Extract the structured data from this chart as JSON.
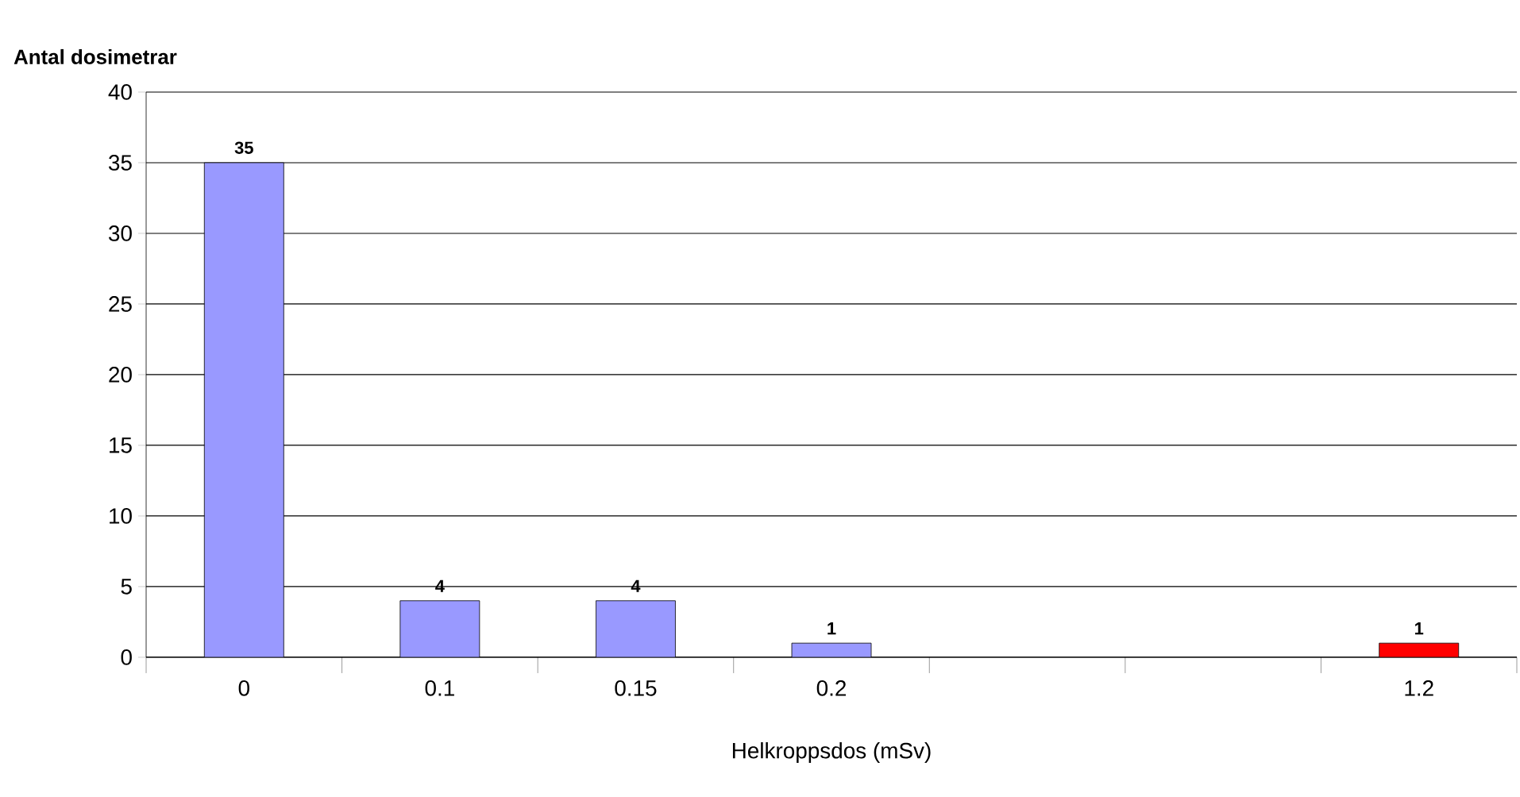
{
  "chart_data": {
    "type": "bar",
    "ylabel": "Antal  dosimetrar",
    "xlabel": "Helkroppsdos (mSv)",
    "categories": [
      "0",
      "0.1",
      "0.15",
      "0.2",
      null,
      null,
      "1.2"
    ],
    "values": [
      35,
      4,
      4,
      1,
      null,
      null,
      1
    ],
    "colors": [
      "#9999ff",
      "#9999ff",
      "#9999ff",
      "#9999ff",
      "#9999ff",
      "#9999ff",
      "#ff0000"
    ],
    "ylim": [
      0,
      40
    ],
    "yticks": [
      0,
      5,
      10,
      15,
      20,
      25,
      30,
      35,
      40
    ],
    "grid": "y",
    "data_labels": true
  }
}
